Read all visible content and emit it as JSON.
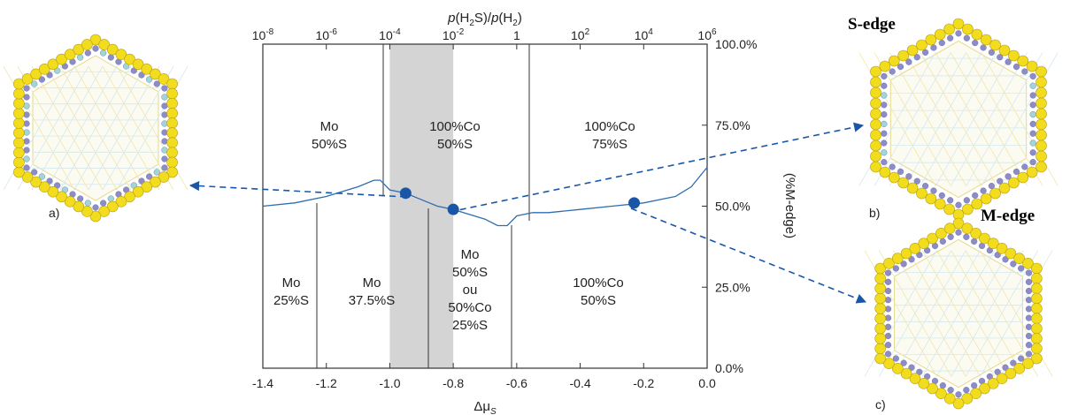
{
  "top_axis": {
    "label_parts": [
      "p",
      "(H",
      "2",
      "S)/",
      "p",
      "(H",
      "2",
      ")"
    ],
    "ticks": [
      {
        "base": "10",
        "exp": "-8"
      },
      {
        "base": "10",
        "exp": "-6"
      },
      {
        "base": "10",
        "exp": "-4"
      },
      {
        "base": "10",
        "exp": "-2"
      },
      {
        "base": "1",
        "exp": ""
      },
      {
        "base": "10",
        "exp": "2"
      },
      {
        "base": "10",
        "exp": "4"
      },
      {
        "base": "10",
        "exp": "6"
      }
    ]
  },
  "bottom_axis": {
    "label": "Δμ",
    "label_sub": "S",
    "ticks": [
      "-1.4",
      "-1.2",
      "-1.0",
      "-0.8",
      "-0.6",
      "-0.4",
      "-0.2",
      "0.0"
    ],
    "tick_values": [
      -1.4,
      -1.2,
      -1.0,
      -0.8,
      -0.6,
      -0.4,
      -0.2,
      0.0
    ]
  },
  "right_axis": {
    "label": "(%M-edge)",
    "ticks": [
      "100.0%",
      "75.0%",
      "50.0%",
      "25.0%",
      "0.0%"
    ],
    "tick_values": [
      100,
      75,
      50,
      25,
      0
    ]
  },
  "regions": [
    {
      "lines": [
        "Mo",
        "50%S"
      ]
    },
    {
      "lines": [
        "100%Co",
        "50%S"
      ]
    },
    {
      "lines": [
        "100%Co",
        "75%S"
      ]
    },
    {
      "lines": [
        "Mo",
        "25%S"
      ]
    },
    {
      "lines": [
        "Mo",
        "37.5%S"
      ]
    },
    {
      "lines": [
        "Mo",
        "50%S",
        "ou",
        "50%Co",
        "25%S"
      ]
    },
    {
      "lines": [
        "100%Co",
        "50%S"
      ]
    }
  ],
  "panel_labels": {
    "a": "a)",
    "b": "b)",
    "c": "c)"
  },
  "edge_labels": {
    "s_edge": "S-edge",
    "m_edge": "M-edge"
  },
  "colors": {
    "curve": "#2e6db0",
    "point": "#1a56a8",
    "shaded": "#d4d4d4",
    "sulfur": "#f2dc1e",
    "molybdenum": "#8c8cc8",
    "cobalt": "#9fd6d6"
  },
  "chart_data": {
    "type": "line",
    "xlabel": "Δμ_S",
    "ylabel": "(%M-edge)",
    "xlim": [
      -1.4,
      0.0
    ],
    "ylim": [
      0,
      100
    ],
    "shaded_range": [
      -1.0,
      -0.8
    ],
    "phase_boundaries_upper": [
      -1.01,
      0.0
    ],
    "phase_boundaries_lower": [
      -1.24,
      -0.88,
      -0.62
    ],
    "curve": {
      "x": [
        -1.4,
        -1.3,
        -1.2,
        -1.1,
        -1.05,
        -1.03,
        -1.0,
        -0.95,
        -0.9,
        -0.85,
        -0.8,
        -0.75,
        -0.7,
        -0.66,
        -0.63,
        -0.6,
        -0.55,
        -0.5,
        -0.4,
        -0.3,
        -0.2,
        -0.1,
        -0.05,
        0.0
      ],
      "y": [
        50,
        51,
        53,
        56,
        58,
        58,
        55,
        54,
        52,
        50,
        49,
        47.5,
        46,
        44,
        44,
        47,
        48,
        48,
        49,
        50,
        51,
        53,
        56,
        62
      ]
    },
    "highlight_points": [
      {
        "x": -0.95,
        "y": 54
      },
      {
        "x": -0.8,
        "y": 49
      },
      {
        "x": -0.23,
        "y": 51
      }
    ]
  }
}
